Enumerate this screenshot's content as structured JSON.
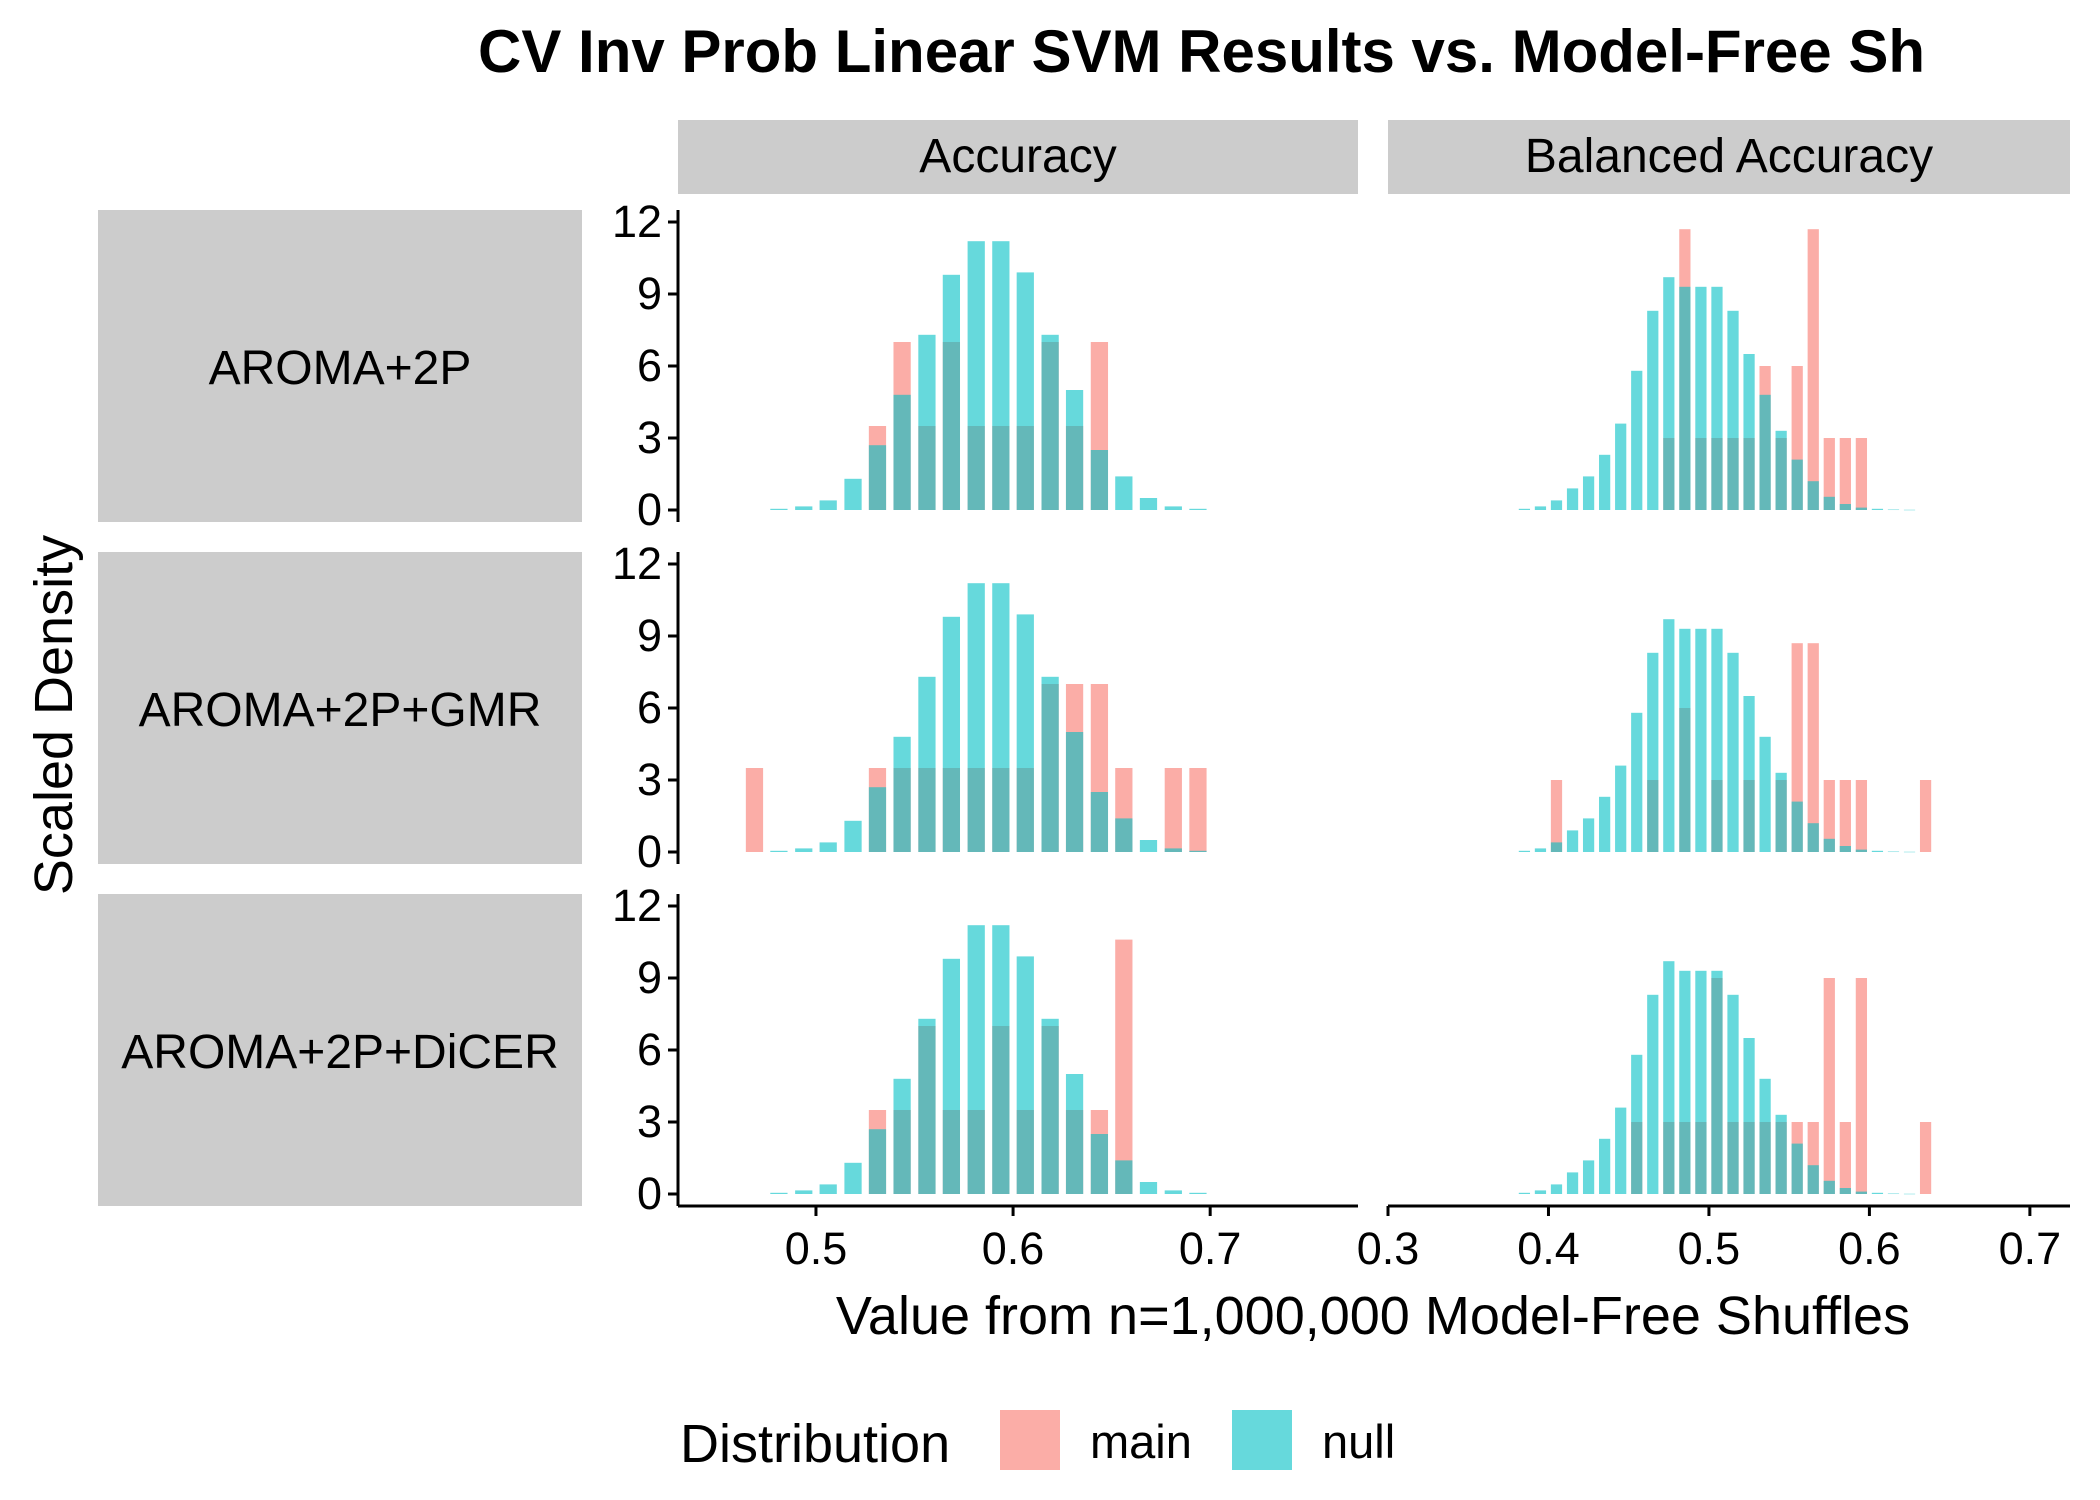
{
  "chart_data": {
    "type": "bar",
    "title": "CV Inv Prob Linear SVM Results vs. Model-Free Sh",
    "xlabel": "Value from n=1,000,000 Model-Free Shuffles",
    "ylabel": "Scaled Density",
    "columns": [
      "Accuracy",
      "Balanced Accuracy"
    ],
    "rows": [
      "AROMA+2P",
      "AROMA+2P+GMR",
      "AROMA+2P+DiCER"
    ],
    "ylim": [
      0,
      12
    ],
    "yticks": [
      0,
      3,
      6,
      9,
      12
    ],
    "xlim": {
      "Accuracy": [
        0.43,
        0.775
      ],
      "Balanced Accuracy": [
        0.3,
        0.725
      ]
    },
    "xticks": {
      "Accuracy": [
        "0.5",
        "0.6",
        "0.7"
      ],
      "Balanced Accuracy": [
        "0.3",
        "0.4",
        "0.5",
        "0.6",
        "0.7"
      ]
    },
    "legend": {
      "title": "Distribution",
      "position": "bottom",
      "entries": [
        "main",
        "null"
      ]
    },
    "colors": {
      "main": "#F8766D",
      "null": "#00BFC4"
    },
    "series_opacity": 0.6,
    "bin_width_acc": 0.0125,
    "bin_width_bal": 0.01,
    "null": {
      "acc_x": [
        0.4812,
        0.4938,
        0.5062,
        0.5188,
        0.5312,
        0.5437,
        0.5563,
        0.5687,
        0.5813,
        0.5938,
        0.6062,
        0.6188,
        0.6312,
        0.6438,
        0.6562,
        0.6687,
        0.6813,
        0.6938
      ],
      "acc_y": [
        0.05,
        0.15,
        0.4,
        1.3,
        2.7,
        4.8,
        7.3,
        9.8,
        11.2,
        11.2,
        9.9,
        7.3,
        5.0,
        2.5,
        1.4,
        0.5,
        0.15,
        0.05
      ],
      "bal_x": [
        0.385,
        0.395,
        0.405,
        0.415,
        0.425,
        0.435,
        0.445,
        0.455,
        0.465,
        0.475,
        0.485,
        0.495,
        0.505,
        0.515,
        0.525,
        0.535,
        0.545,
        0.555,
        0.565,
        0.575,
        0.585,
        0.595,
        0.605,
        0.615,
        0.625
      ],
      "bal_y": [
        0.05,
        0.15,
        0.4,
        0.9,
        1.4,
        2.3,
        3.6,
        5.8,
        8.3,
        9.7,
        9.3,
        9.3,
        9.3,
        8.3,
        6.5,
        4.8,
        3.3,
        2.1,
        1.2,
        0.55,
        0.25,
        0.1,
        0.05,
        0.02,
        0.01
      ]
    },
    "panels": [
      {
        "row": "AROMA+2P",
        "acc_main_x": [
          0.5312,
          0.5437,
          0.5563,
          0.5687,
          0.5813,
          0.5938,
          0.6062,
          0.6188,
          0.6312,
          0.6438
        ],
        "acc_main_y": [
          3.5,
          7.0,
          3.5,
          7.0,
          3.5,
          3.5,
          3.5,
          7.0,
          3.5,
          7.0
        ],
        "bal_main_x": [
          0.475,
          0.485,
          0.495,
          0.505,
          0.515,
          0.525,
          0.535,
          0.545,
          0.555,
          0.565,
          0.575,
          0.585,
          0.595
        ],
        "bal_main_y": [
          3.0,
          11.7,
          3.0,
          3.0,
          3.0,
          3.0,
          6.0,
          3.0,
          6.0,
          11.7,
          3.0,
          3.0,
          3.0
        ]
      },
      {
        "row": "AROMA+2P+GMR",
        "acc_main_x": [
          0.4688,
          0.5312,
          0.5437,
          0.5563,
          0.5687,
          0.5813,
          0.5938,
          0.6062,
          0.6188,
          0.6312,
          0.6438,
          0.6562,
          0.6813,
          0.6938
        ],
        "acc_main_y": [
          3.5,
          3.5,
          3.5,
          3.5,
          3.5,
          3.5,
          3.5,
          3.5,
          7.0,
          7.0,
          7.0,
          3.5,
          3.5,
          3.5
        ],
        "bal_main_x": [
          0.405,
          0.465,
          0.485,
          0.505,
          0.525,
          0.545,
          0.555,
          0.565,
          0.575,
          0.585,
          0.595,
          0.635
        ],
        "bal_main_y": [
          3.0,
          3.0,
          6.0,
          3.0,
          3.0,
          3.0,
          8.7,
          8.7,
          3.0,
          3.0,
          3.0,
          3.0
        ]
      },
      {
        "row": "AROMA+2P+DiCER",
        "acc_main_x": [
          0.5312,
          0.5437,
          0.5563,
          0.5687,
          0.5813,
          0.5938,
          0.6062,
          0.6188,
          0.6312,
          0.6438,
          0.6562
        ],
        "acc_main_y": [
          3.5,
          3.5,
          7.0,
          3.5,
          3.5,
          7.0,
          3.5,
          7.0,
          3.5,
          3.5,
          10.6
        ],
        "bal_main_x": [
          0.455,
          0.475,
          0.485,
          0.495,
          0.505,
          0.515,
          0.525,
          0.535,
          0.545,
          0.555,
          0.565,
          0.575,
          0.585,
          0.595,
          0.635
        ],
        "bal_main_y": [
          3.0,
          3.0,
          3.0,
          3.0,
          9.0,
          3.0,
          3.0,
          3.0,
          3.0,
          3.0,
          3.0,
          9.0,
          3.0,
          9.0,
          3.0
        ]
      }
    ]
  }
}
